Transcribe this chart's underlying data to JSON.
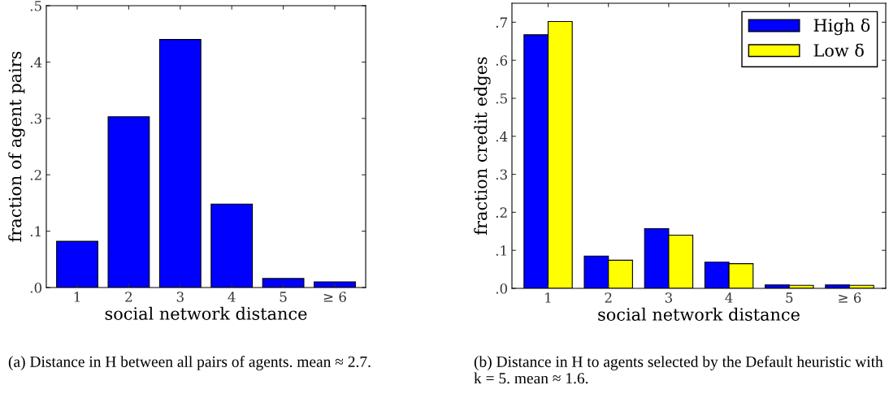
{
  "chart_data": [
    {
      "type": "bar",
      "categories": [
        "1",
        "2",
        "3",
        "4",
        "5",
        "≥ 6"
      ],
      "xlabel": "social network distance",
      "ylabel": "fraction of agent pairs",
      "series": [
        {
          "color": "#0000ff",
          "values": [
            0.082,
            0.303,
            0.44,
            0.148,
            0.016,
            0.01
          ]
        }
      ],
      "ylim": [
        0,
        0.5
      ],
      "yticks": [
        {
          "value": 0,
          "label": ".0"
        },
        {
          "value": 0.1,
          "label": ".1"
        },
        {
          "value": 0.2,
          "label": ".2"
        },
        {
          "value": 0.3,
          "label": ".3"
        },
        {
          "value": 0.4,
          "label": ".4"
        },
        {
          "value": 0.5,
          "label": ".5"
        }
      ],
      "grid": false,
      "legend": false,
      "annotations": [
        "(a) Distance in H between all pairs of agents. mean ≈ 2.7."
      ]
    },
    {
      "type": "bar",
      "categories": [
        "1",
        "2",
        "3",
        "4",
        "5",
        "≥ 6"
      ],
      "xlabel": "social network distance",
      "ylabel": "fraction credit edges",
      "series": [
        {
          "name": "High δ",
          "color": "#0000ff",
          "values": [
            0.667,
            0.085,
            0.157,
            0.069,
            0.009,
            0.009
          ]
        },
        {
          "name": "Low δ",
          "color": "#ffff00",
          "values": [
            0.702,
            0.074,
            0.14,
            0.065,
            0.008,
            0.008
          ]
        }
      ],
      "ylim": [
        0,
        0.75
      ],
      "yticks": [
        {
          "value": 0,
          "label": ".0"
        },
        {
          "value": 0.1,
          "label": ".1"
        },
        {
          "value": 0.2,
          "label": ".2"
        },
        {
          "value": 0.3,
          "label": ".3"
        },
        {
          "value": 0.4,
          "label": ".4"
        },
        {
          "value": 0.5,
          "label": ".5"
        },
        {
          "value": 0.6,
          "label": ".6"
        },
        {
          "value": 0.7,
          "label": ".7"
        }
      ],
      "grid": false,
      "legend": "top right",
      "annotations": [
        "(b) Distance in H to agents selected by the Default heuristic with k = 5. mean ≈ 1.6."
      ]
    }
  ]
}
